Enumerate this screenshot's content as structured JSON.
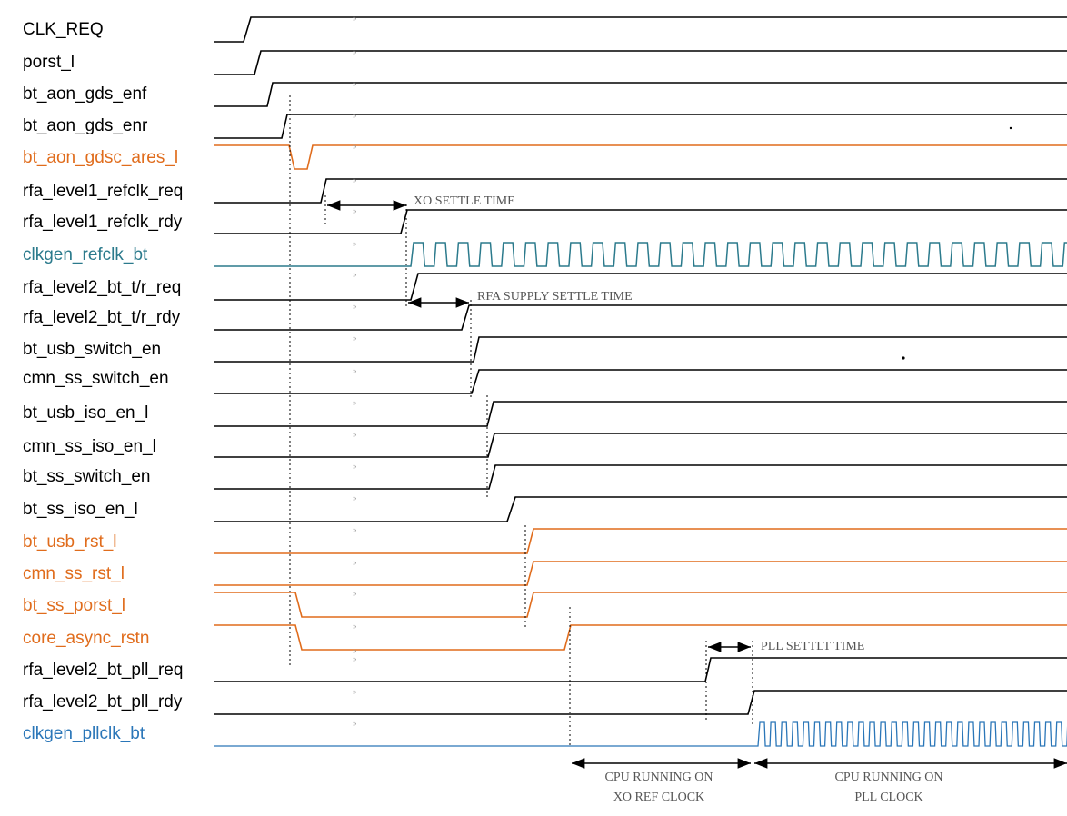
{
  "colors": {
    "black": "#000000",
    "orange": "#e06c1c",
    "teal": "#2b7a8c",
    "blue": "#2a76b8",
    "annotation": "#555555"
  },
  "signals": [
    {
      "name": "CLK_REQ",
      "color": "black"
    },
    {
      "name": "porst_l",
      "color": "black"
    },
    {
      "name": "bt_aon_gds_enf",
      "color": "black"
    },
    {
      "name": "bt_aon_gds_enr",
      "color": "black"
    },
    {
      "name": "bt_aon_gdsc_ares_l",
      "color": "orange"
    },
    {
      "name": "rfa_level1_refclk_req",
      "color": "black"
    },
    {
      "name": "rfa_level1_refclk_rdy",
      "color": "black"
    },
    {
      "name": "clkgen_refclk_bt",
      "color": "teal"
    },
    {
      "name": "rfa_level2_bt_t/r_req",
      "color": "black"
    },
    {
      "name": "rfa_level2_bt_t/r_rdy",
      "color": "black"
    },
    {
      "name": "bt_usb_switch_en",
      "color": "black"
    },
    {
      "name": "cmn_ss_switch_en",
      "color": "black"
    },
    {
      "name": "bt_usb_iso_en_l",
      "color": "black"
    },
    {
      "name": "cmn_ss_iso_en_l",
      "color": "black"
    },
    {
      "name": "bt_ss_switch_en",
      "color": "black"
    },
    {
      "name": "bt_ss_iso_en_l",
      "color": "black"
    },
    {
      "name": "bt_usb_rst_l",
      "color": "orange"
    },
    {
      "name": "cmn_ss_rst_l",
      "color": "orange"
    },
    {
      "name": "bt_ss_porst_l",
      "color": "orange"
    },
    {
      "name": "core_async_rstn",
      "color": "orange"
    },
    {
      "name": "rfa_level2_bt_pll_req",
      "color": "black"
    },
    {
      "name": "rfa_level2_bt_pll_rdy",
      "color": "black"
    },
    {
      "name": "clkgen_pllclk_bt",
      "color": "blue"
    }
  ],
  "annotations": {
    "xo_settle": "XO SETTLE TIME",
    "rfa_supply_settle": "RFA SUPPLY SETTLE TIME",
    "pll_settle": "PLL SETTLT TIME",
    "cpu_xo_line1": "CPU RUNNING ON",
    "cpu_xo_line2": "XO REF CLOCK",
    "cpu_pll_line1": "CPU RUNNING ON",
    "cpu_pll_line2": "PLL CLOCK"
  }
}
